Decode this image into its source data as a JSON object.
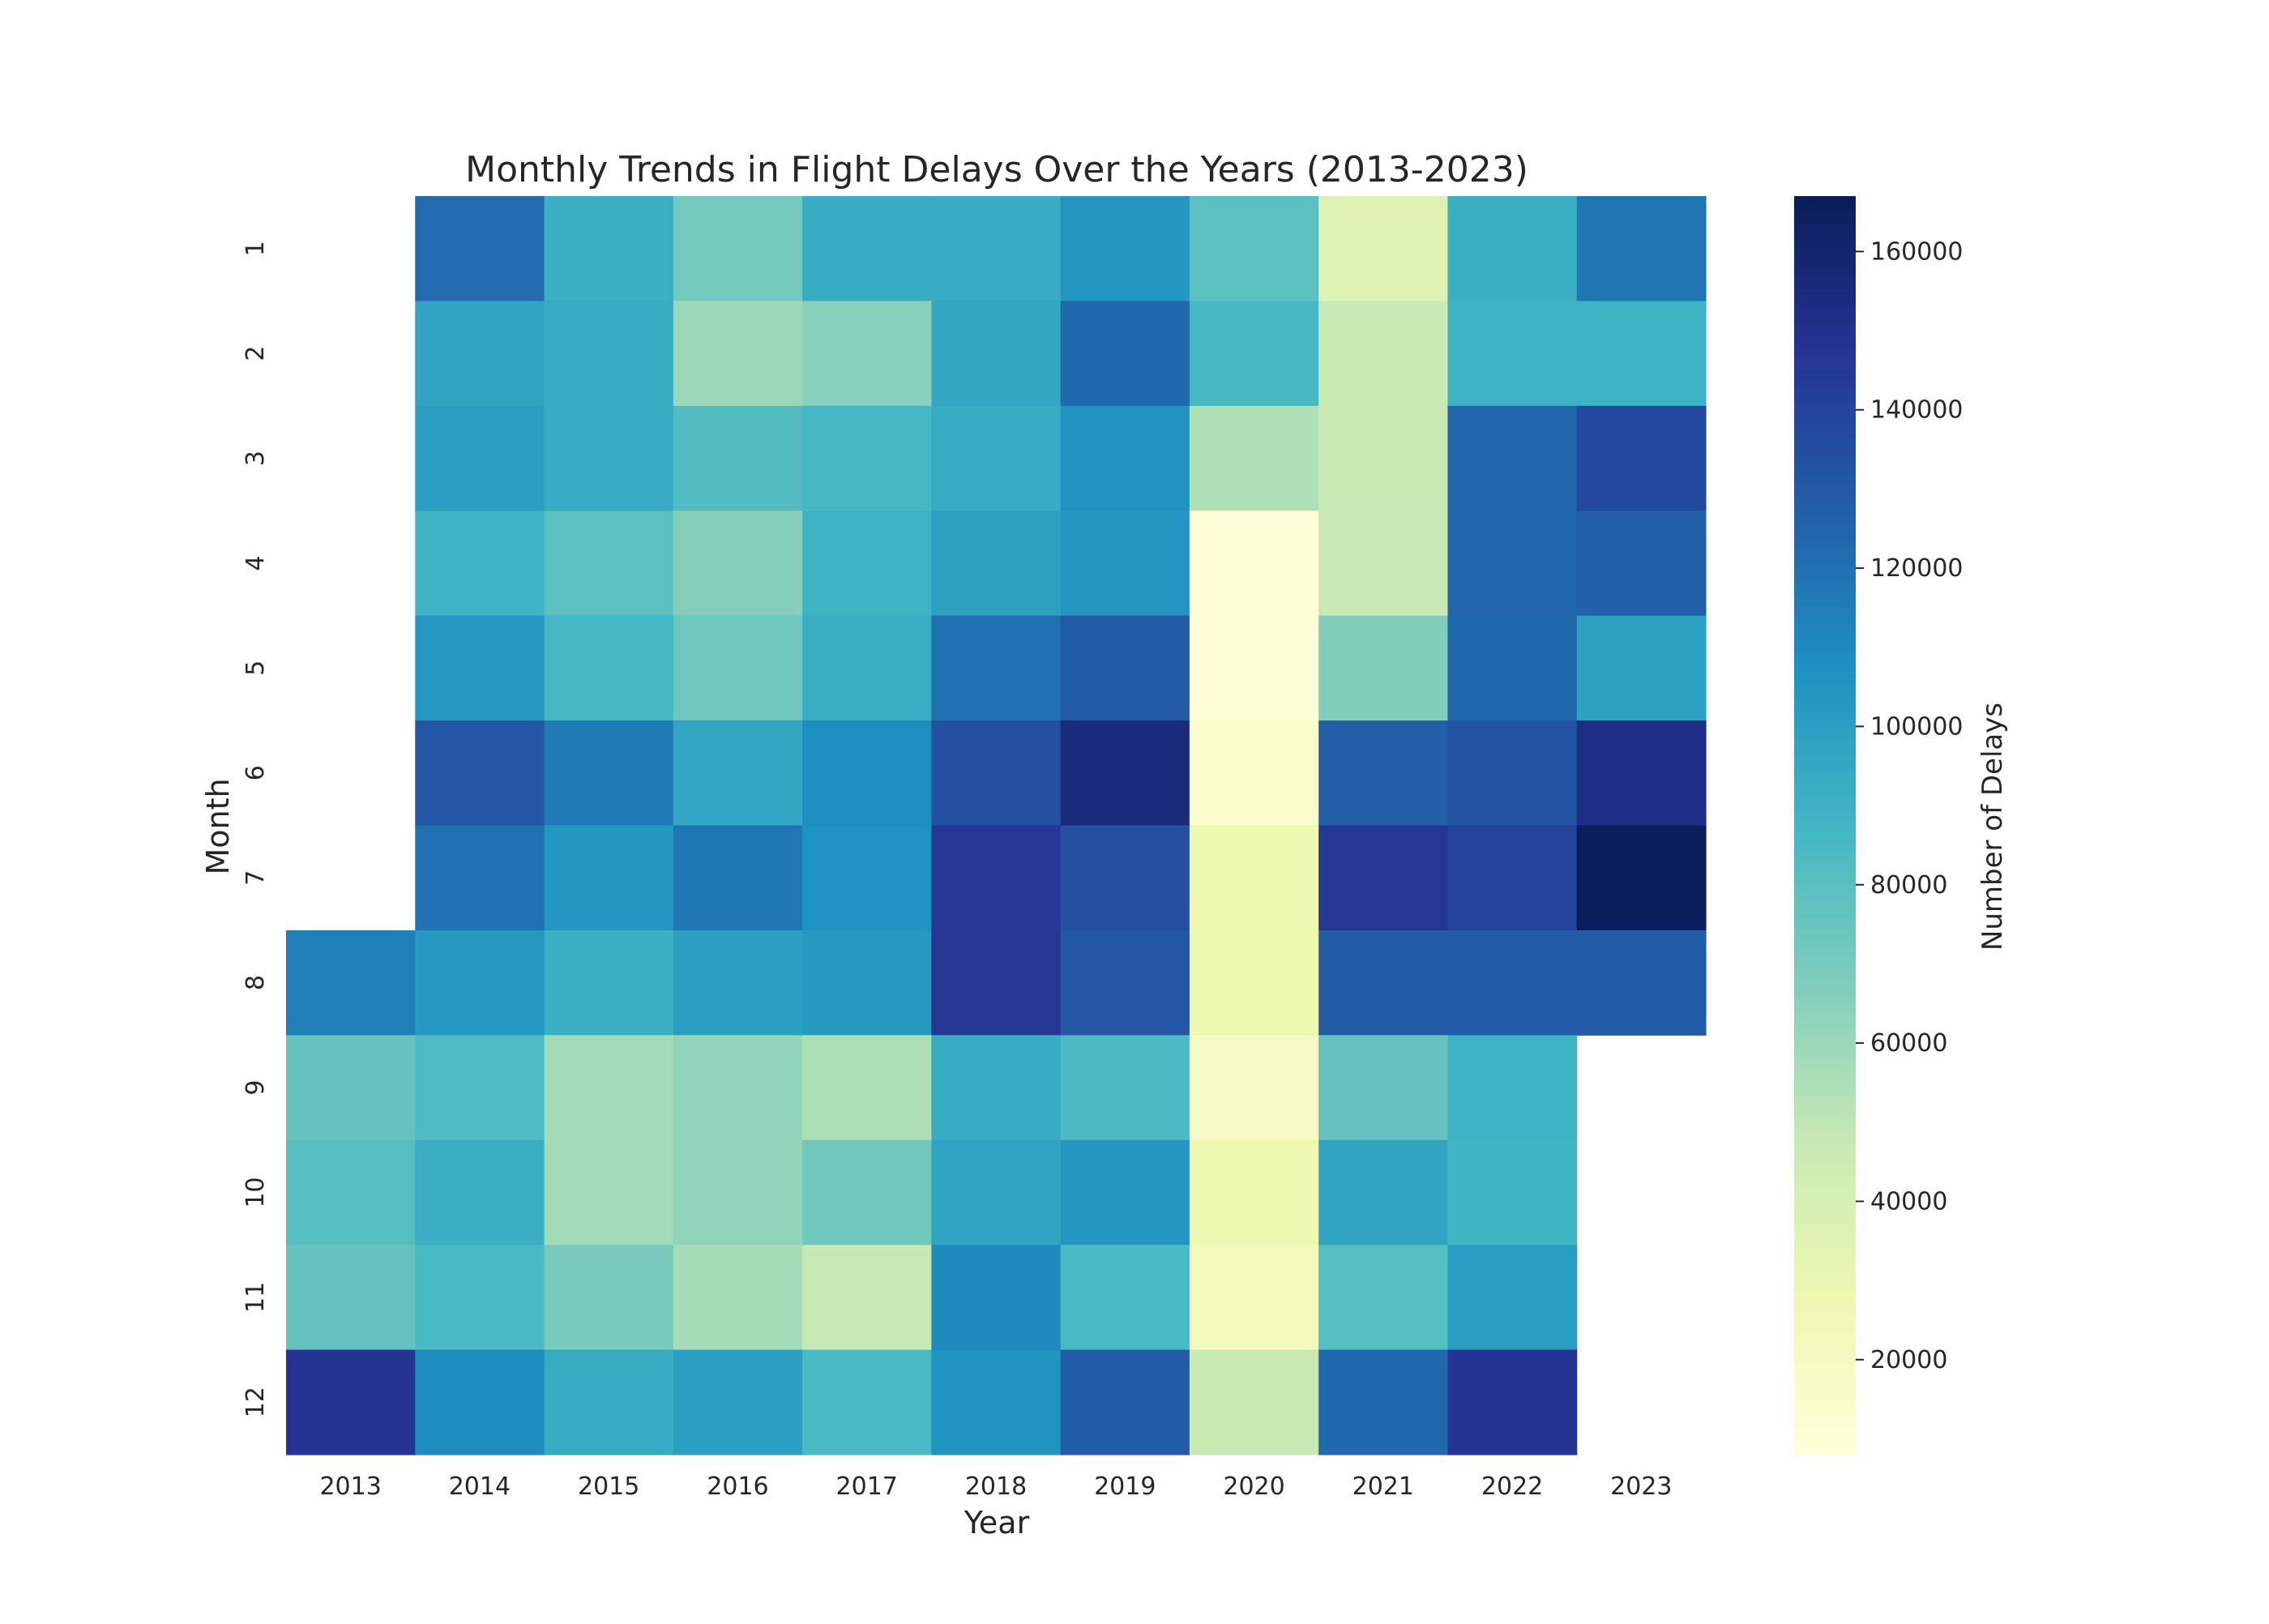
{
  "chart_data": {
    "type": "heatmap",
    "title": "Monthly Trends in Flight Delays Over the Years (2013-2023)",
    "xlabel": "Year",
    "ylabel": "Month",
    "x": [
      "2013",
      "2014",
      "2015",
      "2016",
      "2017",
      "2018",
      "2019",
      "2020",
      "2021",
      "2022",
      "2023"
    ],
    "y": [
      "1",
      "2",
      "3",
      "4",
      "5",
      "6",
      "7",
      "8",
      "9",
      "10",
      "11",
      "12"
    ],
    "values": [
      [
        null,
        122000,
        91000,
        71000,
        93000,
        93000,
        104000,
        79000,
        37000,
        91000,
        118000
      ],
      [
        null,
        97000,
        93000,
        60000,
        65000,
        95000,
        123000,
        86000,
        46000,
        89000,
        89000
      ],
      [
        null,
        100000,
        93000,
        82000,
        87000,
        93000,
        106000,
        54000,
        46000,
        124000,
        137000
      ],
      [
        null,
        89000,
        79000,
        66000,
        89000,
        99000,
        104000,
        9000,
        47000,
        124000,
        126000
      ],
      [
        null,
        103000,
        87000,
        73000,
        92000,
        120000,
        128000,
        9000,
        67000,
        123000,
        99000
      ],
      [
        null,
        131000,
        116000,
        96000,
        108000,
        134000,
        155000,
        15000,
        127000,
        132000,
        152000
      ],
      [
        null,
        120000,
        104000,
        117000,
        107000,
        146000,
        134000,
        28000,
        146000,
        140000,
        166000
      ],
      [
        114000,
        103000,
        91000,
        100000,
        103000,
        146000,
        131000,
        28000,
        128000,
        128000,
        128000
      ],
      [
        76000,
        83000,
        58000,
        63000,
        55000,
        93000,
        84000,
        18000,
        76000,
        89000,
        null
      ],
      [
        81000,
        92000,
        58000,
        63000,
        72000,
        97000,
        104000,
        28000,
        97000,
        88000,
        null
      ],
      [
        76000,
        85000,
        70000,
        57000,
        48000,
        110000,
        85000,
        23000,
        81000,
        101000,
        null
      ],
      [
        147000,
        109000,
        93000,
        100000,
        85000,
        106000,
        128000,
        46000,
        123000,
        147000,
        null
      ]
    ],
    "vmin": 8000,
    "vmax": 167000,
    "colormap": "YlGnBu",
    "colorbar": {
      "label": "Number of Delays",
      "ticks": [
        20000,
        40000,
        60000,
        80000,
        100000,
        120000,
        140000,
        160000
      ],
      "tick_labels": [
        "20000",
        "40000",
        "60000",
        "80000",
        "100000",
        "120000",
        "140000",
        "160000"
      ]
    },
    "grid": false,
    "legend": "colorbar-right"
  }
}
